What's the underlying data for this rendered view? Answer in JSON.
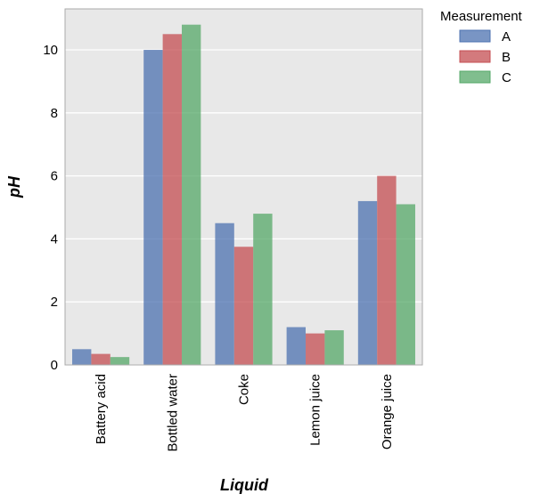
{
  "chart_data": {
    "type": "bar",
    "title": "",
    "xlabel": "Liquid",
    "ylabel": "pH",
    "categories": [
      "Battery acid",
      "Bottled water",
      "Coke",
      "Lemon juice",
      "Orange juice"
    ],
    "series": [
      {
        "name": "A",
        "values": [
          0.5,
          10.0,
          4.5,
          1.2,
          5.2
        ],
        "color": "#4c72b0"
      },
      {
        "name": "B",
        "values": [
          0.35,
          10.5,
          3.75,
          1.0,
          6.0
        ],
        "color": "#c44e52"
      },
      {
        "name": "C",
        "values": [
          0.25,
          10.8,
          4.8,
          1.1,
          5.1
        ],
        "color": "#55a868"
      }
    ],
    "ylim": [
      0,
      11.3
    ],
    "yticks": [
      0,
      2,
      4,
      6,
      8,
      10
    ],
    "grid": true,
    "background": "#e8e8e8",
    "legend": {
      "title": "Measurement",
      "placement": "outside-top-right"
    }
  }
}
